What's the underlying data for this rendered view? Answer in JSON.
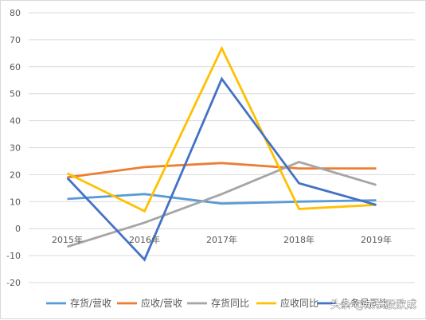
{
  "chart_data": {
    "type": "line",
    "categories": [
      "2015年",
      "2016年",
      "2017年",
      "2018年",
      "2019年"
    ],
    "ylim": [
      -20,
      80
    ],
    "yticks": [
      "-20",
      "-10",
      "0",
      "10",
      "20",
      "30",
      "40",
      "50",
      "60",
      "70",
      "80"
    ],
    "grid": true,
    "legend_position": "bottom",
    "series": [
      {
        "name": "存货/营收",
        "color": "#5b9bd5",
        "values": [
          11,
          12.8,
          9.3,
          10,
          10.5
        ]
      },
      {
        "name": "应收/营收",
        "color": "#ed7d31",
        "values": [
          19,
          22.8,
          24.3,
          22.3,
          22.3
        ]
      },
      {
        "name": "存货同比",
        "color": "#a5a5a5",
        "values": [
          -6.7,
          2.2,
          12.8,
          24.7,
          16.2
        ]
      },
      {
        "name": "应收同比",
        "color": "#ffc000",
        "values": [
          20.5,
          6.5,
          66.8,
          7.3,
          8.8
        ]
      },
      {
        "name": "头条号同比",
        "color": "#4472c4",
        "values": [
          18.8,
          -11.5,
          55.5,
          16.8,
          8.8
        ]
      }
    ]
  },
  "watermark": "头条 @成长股欧成"
}
